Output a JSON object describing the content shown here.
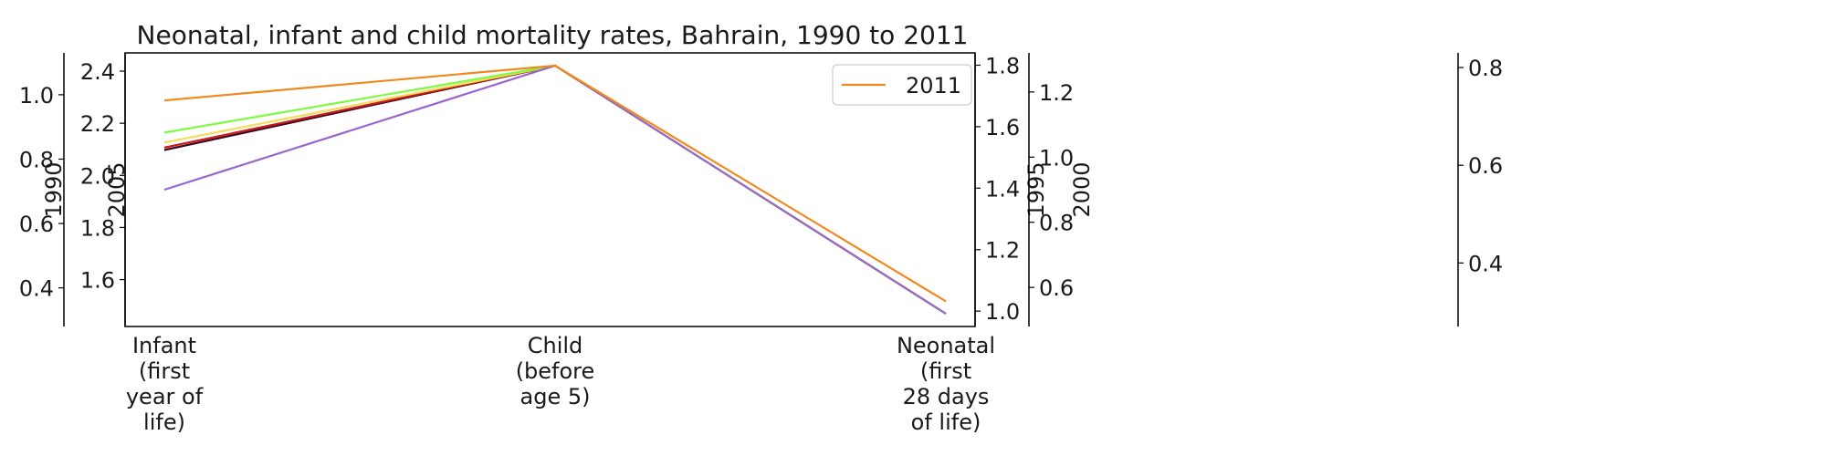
{
  "chart_data": {
    "type": "line",
    "title": "Neonatal, infant and child mortality rates, Bahrain, 1990 to 2011",
    "categories": [
      "Infant (first year of life)",
      "Child (before age 5)",
      "Neonatal (first 28 days of life)"
    ],
    "category_lines": [
      [
        "Infant",
        "(first",
        "year of",
        "life)"
      ],
      [
        "Child",
        "(before",
        "age 5)"
      ],
      [
        "Neonatal",
        "(first",
        "28 days",
        "of life)"
      ]
    ],
    "axes": [
      {
        "label": "1990",
        "ticks": [
          0.4,
          0.6,
          0.8,
          1.0
        ],
        "side": "left",
        "range": [
          0.28,
          1.13
        ]
      },
      {
        "label": "2005",
        "ticks": [
          1.6,
          1.8,
          2.0,
          2.2,
          2.4
        ],
        "side": "left",
        "range": [
          1.42,
          2.47
        ]
      },
      {
        "label": "1995",
        "ticks": [
          1.0,
          1.2,
          1.4,
          1.6,
          1.8
        ],
        "side": "right",
        "range": [
          0.95,
          1.84
        ]
      },
      {
        "label": "2000",
        "ticks": [
          0.6,
          0.8,
          1.0,
          1.2
        ],
        "side": "right",
        "range": [
          0.48,
          1.32
        ]
      },
      {
        "label": "",
        "ticks": [
          0.4,
          0.6,
          0.8
        ],
        "side": "right",
        "range": [
          0.27,
          0.83
        ]
      }
    ],
    "series": [
      {
        "name": "",
        "color": "#3a0a22",
        "values": [
          0.66,
          1.0,
          0.0
        ]
      },
      {
        "name": "",
        "color": "#cc1a1a",
        "values": [
          0.67,
          1.0,
          0.0
        ]
      },
      {
        "name": "",
        "color": "#f5dc5a",
        "values": [
          0.69,
          1.0,
          0.0
        ]
      },
      {
        "name": "",
        "color": "#7cfc3c",
        "values": [
          0.73,
          1.0,
          0.0
        ]
      },
      {
        "name": "",
        "color": "#9966cc",
        "values": [
          0.5,
          1.0,
          0.0
        ]
      },
      {
        "name": "2011",
        "color": "#f08a1e",
        "values": [
          0.86,
          1.0,
          0.05
        ]
      }
    ],
    "legend": {
      "position": "top-right",
      "entries": [
        {
          "label": "2011",
          "color": "#f08a1e"
        }
      ]
    },
    "grid": false
  }
}
